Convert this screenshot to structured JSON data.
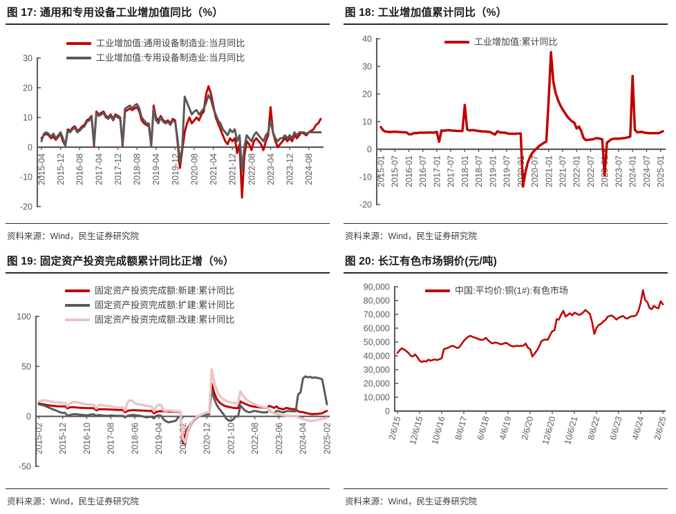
{
  "colors": {
    "red": "#C00000",
    "gray": "#595959",
    "pink": "#EAC5C3",
    "axis": "#595959",
    "title_text": "#1A1A1A",
    "rule": "#262626",
    "legend_text": "#404040",
    "source_text": "#3D3D3D"
  },
  "chart_data": [
    {
      "id": "fig17",
      "type": "line",
      "title": "图 17:  通用和专用设备工业增加值同比（%）",
      "source": "资料来源：Wind，民生证券研究院",
      "legend_position": "top",
      "grid": false,
      "ylim": [
        -20,
        30
      ],
      "y_ticks": [
        {
          "v": 30,
          "label": "30"
        },
        {
          "v": 20,
          "label": "20"
        },
        {
          "v": 10,
          "label": "10"
        },
        {
          "v": 0,
          "label": "0"
        },
        {
          "v": -10,
          "label": "-10"
        },
        {
          "v": -20,
          "label": "-20"
        }
      ],
      "x_tick_every": 8,
      "x_tick_labels": [
        "2015-04",
        "2015-12",
        "2016-08",
        "2017-04",
        "2017-12",
        "2018-08",
        "2019-04",
        "2019-12",
        "2020-08",
        "2021-04",
        "2021-12",
        "2022-08",
        "2023-04",
        "2023-12",
        "2024-08"
      ],
      "series": [
        {
          "name": "工业增加值:通用设备制造业:当月同比",
          "color": "#C00000",
          "values": [
            3,
            4,
            4.5,
            4,
            3,
            3.5,
            2.5,
            3.5,
            4.5,
            2,
            0.5,
            6,
            5.5,
            6.5,
            7,
            5.5,
            6,
            7,
            7.5,
            9,
            9.5,
            10.5,
            0.5,
            12,
            11,
            11.5,
            12,
            10.5,
            10,
            11,
            9.5,
            11,
            10.5,
            10,
            0.5,
            12,
            12.5,
            13,
            12.5,
            13,
            13.5,
            12,
            9,
            8,
            7.5,
            7,
            0.5,
            14,
            10,
            9,
            10.5,
            9,
            8.5,
            9,
            8,
            9.5,
            9,
            2,
            -7,
            -1,
            5,
            8,
            10,
            8,
            9,
            10,
            9,
            11,
            12,
            18,
            20.5,
            18,
            14,
            10,
            8,
            6,
            4,
            2,
            1,
            3,
            2,
            3,
            -2,
            1,
            -17,
            -3,
            2,
            1,
            -1,
            2,
            3,
            2,
            1,
            -1,
            2,
            4,
            13.5,
            5,
            2,
            0,
            1,
            2,
            3,
            2,
            3,
            2,
            4,
            3,
            4,
            5,
            4.5,
            4,
            5,
            5.5,
            6,
            7.5,
            8,
            9.5
          ]
        },
        {
          "name": "工业增加值:专用设备制造业:当月同比",
          "color": "#595959",
          "values": [
            2,
            4.5,
            5,
            4.5,
            3.5,
            4.5,
            3,
            4,
            5,
            3,
            0.5,
            5.5,
            5,
            6,
            6.5,
            5,
            5.5,
            6.5,
            7,
            8.5,
            9,
            10,
            1,
            11.5,
            10.5,
            11,
            11.5,
            10,
            9.5,
            10.5,
            9,
            10.5,
            10,
            9.5,
            1,
            13,
            13.5,
            14,
            13,
            14,
            14.5,
            13,
            10,
            9,
            8,
            8,
            0.5,
            13,
            9,
            8,
            10,
            8.5,
            8,
            8.5,
            7.5,
            9,
            8.5,
            3,
            -5,
            0,
            17,
            15,
            13,
            11,
            12,
            12.5,
            11,
            12,
            13,
            15,
            17.5,
            16,
            13,
            11,
            9,
            8,
            6,
            5,
            4,
            6,
            5,
            6,
            2,
            4,
            -8,
            0,
            4,
            3,
            2,
            4,
            5,
            4,
            3,
            2,
            4,
            5,
            9,
            5,
            3,
            2,
            3,
            3,
            4,
            3,
            4,
            3,
            5,
            4,
            5,
            5,
            5,
            4.5,
            5,
            5,
            5,
            5,
            5,
            5
          ]
        }
      ]
    },
    {
      "id": "fig18",
      "type": "line",
      "title": "图 18:  工业增加值累计同比（%）",
      "source": "资料来源：Wind，民生证券研究院",
      "legend_position": "top",
      "grid": false,
      "ylim": [
        -20,
        40
      ],
      "y_ticks": [
        {
          "v": 40,
          "label": "40"
        },
        {
          "v": 30,
          "label": "30"
        },
        {
          "v": 20,
          "label": "20"
        },
        {
          "v": 10,
          "label": "10"
        },
        {
          "v": 0,
          "label": "0"
        },
        {
          "v": -10,
          "label": "-10"
        },
        {
          "v": -20,
          "label": "-20"
        }
      ],
      "x_tick_every": 6,
      "x_tick_labels": [
        "2015-01",
        "2015-07",
        "2016-01",
        "2016-07",
        "2017-01",
        "2017-07",
        "2018-01",
        "2018-07",
        "2019-01",
        "2019-07",
        "2020-01",
        "2020-07",
        "2021-01",
        "2021-07",
        "2022-01",
        "2022-07",
        "2023-01",
        "2023-07",
        "2024-01",
        "2024-07",
        "2025-01"
      ],
      "series": [
        {
          "name": "工业增加值:累计同比",
          "color": "#C00000",
          "values": [
            8,
            6.8,
            6.4,
            6.3,
            6.2,
            6.3,
            6.3,
            6.3,
            6.2,
            6.2,
            6.1,
            6.1,
            5.4,
            5.4,
            5.8,
            5.8,
            5.9,
            6.0,
            6.0,
            6.0,
            6.0,
            6.1,
            6.0,
            6.0,
            6.3,
            2.7,
            6.8,
            6.7,
            6.8,
            6.9,
            6.8,
            6.7,
            6.7,
            6.6,
            6.6,
            6.6,
            16,
            7.2,
            6.8,
            6.9,
            6.9,
            6.7,
            6.6,
            6.5,
            6.4,
            6.4,
            6.3,
            6.2,
            5.7,
            5.3,
            6.5,
            6.1,
            6.0,
            6.0,
            5.8,
            5.6,
            5.6,
            5.6,
            5.6,
            5.7,
            5.7,
            -13.5,
            -8.4,
            -4.9,
            -2.8,
            -1.3,
            -0.4,
            0.4,
            1.2,
            1.8,
            2.3,
            2.8,
            18,
            35.1,
            24.5,
            20.3,
            17.8,
            15.9,
            14.4,
            13.1,
            11.8,
            10.9,
            10.1,
            9.6,
            7.5,
            8.2,
            6.5,
            4.0,
            3.3,
            3.4,
            3.5,
            3.6,
            3.9,
            4.0,
            3.8,
            3.6,
            -9.5,
            2.4,
            3.0,
            3.6,
            3.8,
            3.8,
            3.8,
            3.9,
            4.0,
            4.1,
            4.3,
            4.6,
            26.5,
            7.0,
            6.1,
            6.2,
            6.3,
            6.0,
            5.9,
            5.8,
            5.8,
            5.8,
            5.8,
            5.8,
            6.1,
            6.5
          ]
        }
      ]
    },
    {
      "id": "fig19",
      "type": "line",
      "title": "图 19:  固定资产投资完成额累计同比正增（%）",
      "source": "资料来源：Wind，民生证券研究院",
      "legend_position": "top",
      "grid": false,
      "ylim": [
        -50,
        100
      ],
      "y_ticks": [
        {
          "v": 100,
          "label": "100"
        },
        {
          "v": 50,
          "label": "50"
        },
        {
          "v": 0,
          "label": "0"
        },
        {
          "v": -50,
          "label": "-50"
        }
      ],
      "x_tick_every": 10,
      "x_tick_labels": [
        "2015-02",
        "2015-12",
        "2016-10",
        "2017-08",
        "2018-06",
        "2019-04",
        "2020-02",
        "2020-12",
        "2021-10",
        "2022-08",
        "2023-06",
        "2024-04",
        "2025-02"
      ],
      "series": [
        {
          "name": "固定资产投资完成额:新建:累计同比",
          "color": "#C00000",
          "values": [
            13,
            12.5,
            12,
            11.5,
            11,
            10.8,
            10.5,
            10.3,
            10,
            10,
            10,
            10,
            8,
            9,
            9.2,
            9,
            8.8,
            8.6,
            8.5,
            8.4,
            8.3,
            8.2,
            8.1,
            8.1,
            6,
            7,
            7.2,
            7.1,
            7,
            6.9,
            6.8,
            6.7,
            6.6,
            6.5,
            6.4,
            6.4,
            4,
            5.5,
            6,
            6.2,
            6.1,
            6,
            5.9,
            5.8,
            5.7,
            5.6,
            5.5,
            5.5,
            3,
            4.5,
            5,
            5.2,
            5.1,
            5,
            4.9,
            4.8,
            4.7,
            4.6,
            4.5,
            4.5,
            -27,
            -18,
            -12,
            -8,
            -5,
            -3,
            -1,
            0.5,
            1.5,
            2.5,
            3,
            3,
            33,
            24,
            18,
            14.5,
            12.5,
            11,
            10,
            9.5,
            9,
            8.5,
            8.2,
            8.2,
            15,
            13.5,
            12.5,
            11.5,
            10.5,
            10,
            9.5,
            9.2,
            9,
            8.8,
            8.6,
            8.6,
            10.5,
            9.5,
            8.5,
            10,
            8,
            7.5,
            7,
            8.5,
            8,
            7.5,
            7.2,
            7.2,
            5,
            4.5,
            4.2,
            3.5,
            3,
            2.5,
            2.2,
            2.3,
            2.5,
            2.8,
            3,
            4.5,
            5.5
          ]
        },
        {
          "name": "固定资产投资完成额:扩建:累计同比",
          "color": "#595959",
          "values": [
            12,
            11.5,
            11,
            10,
            9,
            8,
            7,
            6,
            5,
            4,
            3.5,
            3.5,
            0.5,
            1.5,
            2,
            2.2,
            2,
            1.8,
            1.5,
            1.2,
            1,
            1.5,
            2,
            2,
            0.5,
            1.5,
            1,
            0.8,
            0.5,
            0.5,
            1,
            0.8,
            0.5,
            0.5,
            0.5,
            0.5,
            -1,
            0.5,
            1,
            1.5,
            1.2,
            1,
            0.5,
            0.2,
            -0.5,
            -1,
            -0.5,
            -0.5,
            -2,
            0.5,
            1,
            0.5,
            -3,
            -5,
            -6,
            -5.5,
            -5,
            -4.5,
            -1,
            0,
            -20,
            -28,
            -16,
            -10,
            -6,
            -3,
            -1,
            0.5,
            1,
            1.5,
            2,
            2,
            26,
            18,
            12,
            8,
            5,
            2,
            -2,
            -4,
            -4.5,
            -3,
            0,
            0,
            11,
            8,
            5.5,
            4.5,
            4,
            5,
            5.5,
            5,
            4.5,
            4,
            4,
            4,
            6,
            4,
            3,
            5.5,
            5,
            4.5,
            4,
            5,
            5.5,
            5,
            5,
            5,
            22,
            24,
            38,
            40,
            39,
            39.5,
            38.5,
            39,
            38.5,
            38,
            37,
            25,
            12
          ]
        },
        {
          "name": "固定资产投资完成额:改建:累计同比",
          "color": "#EAC5C3",
          "values": [
            15,
            15.5,
            16,
            16,
            15.5,
            15,
            14.5,
            14,
            14,
            13.5,
            13.5,
            13.5,
            10,
            13,
            14,
            14.5,
            14,
            13.5,
            13,
            12.5,
            12,
            12,
            11.5,
            11.5,
            8,
            11,
            11.5,
            11,
            10.5,
            10,
            10,
            9.5,
            9,
            9,
            9,
            9,
            6,
            14,
            16,
            15.5,
            13,
            12.5,
            12,
            11.5,
            11,
            10.5,
            10,
            10,
            5,
            10,
            11.5,
            11,
            6,
            5.5,
            6,
            5.8,
            5.5,
            5.2,
            5,
            5,
            -22,
            -26,
            -15,
            -9,
            -5,
            -2,
            0,
            1,
            2,
            3,
            4,
            4,
            47,
            35,
            27,
            22,
            19,
            17,
            15.5,
            14.5,
            14,
            13.5,
            13,
            13,
            25,
            21,
            18,
            16,
            14.5,
            13,
            12,
            11,
            10,
            9.5,
            9,
            9,
            5,
            4,
            3,
            2.5,
            2,
            1.5,
            1,
            0.5,
            0.5,
            0.5,
            0.5,
            0.5,
            -1,
            -2,
            -2.5,
            -3.5,
            -4,
            -4.5,
            -4.5,
            -4,
            -3.5,
            -3,
            -2.5,
            -2,
            -1.5
          ]
        }
      ]
    },
    {
      "id": "fig20",
      "type": "line",
      "title": "图 20:  长江有色市场铜价(元/吨)",
      "source": "资料来源：Wind，民生证券研究院",
      "legend_position": "top",
      "grid": false,
      "ylim": [
        0,
        90000
      ],
      "y_ticks": [
        {
          "v": 90000,
          "label": "90,000"
        },
        {
          "v": 80000,
          "label": "80,000"
        },
        {
          "v": 70000,
          "label": "70,000"
        },
        {
          "v": 60000,
          "label": "60,000"
        },
        {
          "v": 50000,
          "label": "50,000"
        },
        {
          "v": 40000,
          "label": "40,000"
        },
        {
          "v": 30000,
          "label": "30,000"
        },
        {
          "v": 20000,
          "label": "20,000"
        },
        {
          "v": 10000,
          "label": "10,000"
        },
        {
          "v": 0,
          "label": "0"
        }
      ],
      "x_tick_every": 10,
      "x_tick_labels": [
        "2/6/15",
        "12/6/15",
        "10/6/16",
        "8/6/17",
        "6/6/18",
        "4/6/19",
        "2/6/20",
        "12/6/20",
        "10/6/21",
        "8/6/22",
        "6/6/23",
        "4/6/24",
        "2/6/25"
      ],
      "series": [
        {
          "name": "中国:平均价:铜(1#):有色市场",
          "color": "#C00000",
          "values": [
            42000,
            44000,
            45500,
            44500,
            43500,
            42000,
            40000,
            39500,
            41000,
            39000,
            36500,
            35500,
            36200,
            35800,
            37200,
            36400,
            37000,
            37400,
            36900,
            37600,
            38200,
            44800,
            45300,
            45800,
            46800,
            47200,
            46500,
            45600,
            46300,
            48500,
            50800,
            52500,
            53800,
            54500,
            53600,
            53200,
            52600,
            51800,
            51500,
            51900,
            53000,
            51200,
            49800,
            48900,
            49600,
            49400,
            48700,
            48300,
            48900,
            49400,
            48600,
            47500,
            46800,
            46900,
            47300,
            47000,
            47200,
            47400,
            48900,
            45800,
            44900,
            39500,
            41500,
            43800,
            46500,
            50300,
            51500,
            51800,
            51600,
            55000,
            57800,
            58500,
            66500,
            66200,
            69800,
            72500,
            68400,
            69500,
            70800,
            69300,
            71200,
            70500,
            69600,
            70100,
            71500,
            73200,
            71800,
            70300,
            64500,
            55800,
            60200,
            62300,
            63100,
            64800,
            65800,
            68200,
            68900,
            69100,
            67800,
            66200,
            67500,
            68300,
            68800,
            67400,
            66900,
            68100,
            68600,
            68700,
            69500,
            72800,
            78500,
            87500,
            80200,
            78900,
            74500,
            73800,
            76200,
            74900,
            74300,
            79500,
            77200
          ]
        }
      ]
    }
  ]
}
